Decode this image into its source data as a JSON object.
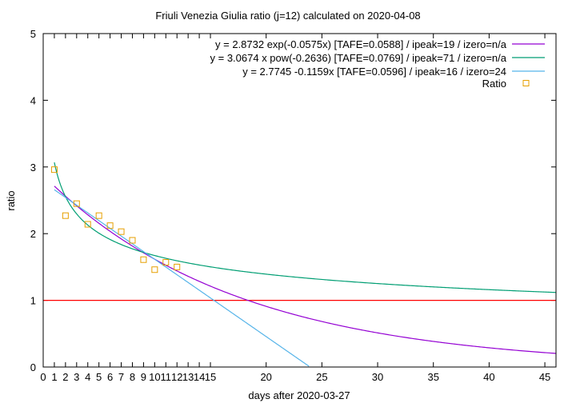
{
  "chart_data": {
    "type": "line",
    "title": "Friuli Venezia Giulia ratio (j=12) calculated on 2020-04-08",
    "xlabel": "days after 2020-03-27",
    "ylabel": "ratio",
    "xlim": [
      0,
      46
    ],
    "ylim": [
      0,
      5
    ],
    "x_ticks": [
      0,
      1,
      2,
      3,
      4,
      5,
      6,
      7,
      8,
      9,
      10,
      11,
      12,
      13,
      14,
      15,
      20,
      25,
      30,
      35,
      40,
      45
    ],
    "y_ticks": [
      0,
      1,
      2,
      3,
      4,
      5
    ],
    "legend_position": "top-right",
    "grid": false,
    "series": [
      {
        "name": "y = 2.8732 exp(-0.0575x)  [TAFE=0.0588] / ipeak=19 / izero=n/a",
        "kind": "exp",
        "a": 2.8732,
        "b": -0.0575,
        "color": "#9400d3",
        "x_range": [
          1,
          46
        ]
      },
      {
        "name": "y = 3.0674 x pow(-0.2636)  [TAFE=0.0769] / ipeak=71 / izero=n/a",
        "kind": "pow",
        "a": 3.0674,
        "b": -0.2636,
        "color": "#009e73",
        "x_range": [
          1,
          46
        ]
      },
      {
        "name": "y = 2.7745 -0.1159x  [TAFE=0.0596] / ipeak=16 / izero=24",
        "kind": "linear",
        "a": 2.7745,
        "b": -0.1159,
        "color": "#56b4e9",
        "x_range": [
          1,
          46
        ]
      },
      {
        "name": "Ratio",
        "kind": "points",
        "color": "#e69f00",
        "x": [
          1,
          2,
          3,
          4,
          5,
          6,
          7,
          8,
          9,
          10,
          11,
          12
        ],
        "y": [
          2.96,
          2.27,
          2.45,
          2.14,
          2.27,
          2.12,
          2.03,
          1.9,
          1.61,
          1.46,
          1.57,
          1.5
        ]
      }
    ],
    "reference_line": {
      "y": 1,
      "color": "#ff0000"
    }
  }
}
